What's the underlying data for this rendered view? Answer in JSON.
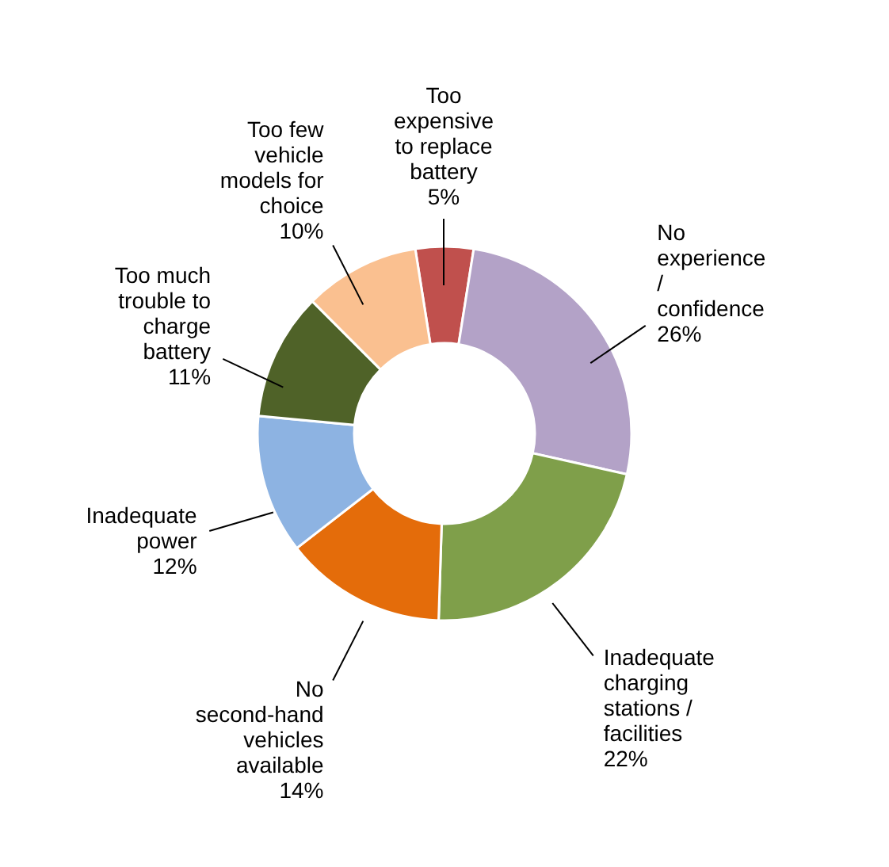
{
  "chart_data": {
    "type": "donut",
    "categories": [
      "Too expensive to replace battery",
      "No experience / confidence",
      "Inadequate charging stations / facilities",
      "No second-hand vehicles available",
      "Inadequate power",
      "Too much trouble to charge battery",
      "Too few vehicle models for choice"
    ],
    "values": [
      5,
      26,
      22,
      14,
      12,
      11,
      10
    ],
    "value_labels": [
      "5%",
      "26%",
      "22%",
      "14%",
      "12%",
      "11%",
      "10%"
    ],
    "colors": [
      "#c0504d",
      "#b3a2c7",
      "#7f9f4a",
      "#e46c0a",
      "#8db3e2",
      "#4f6228",
      "#fac090"
    ]
  }
}
